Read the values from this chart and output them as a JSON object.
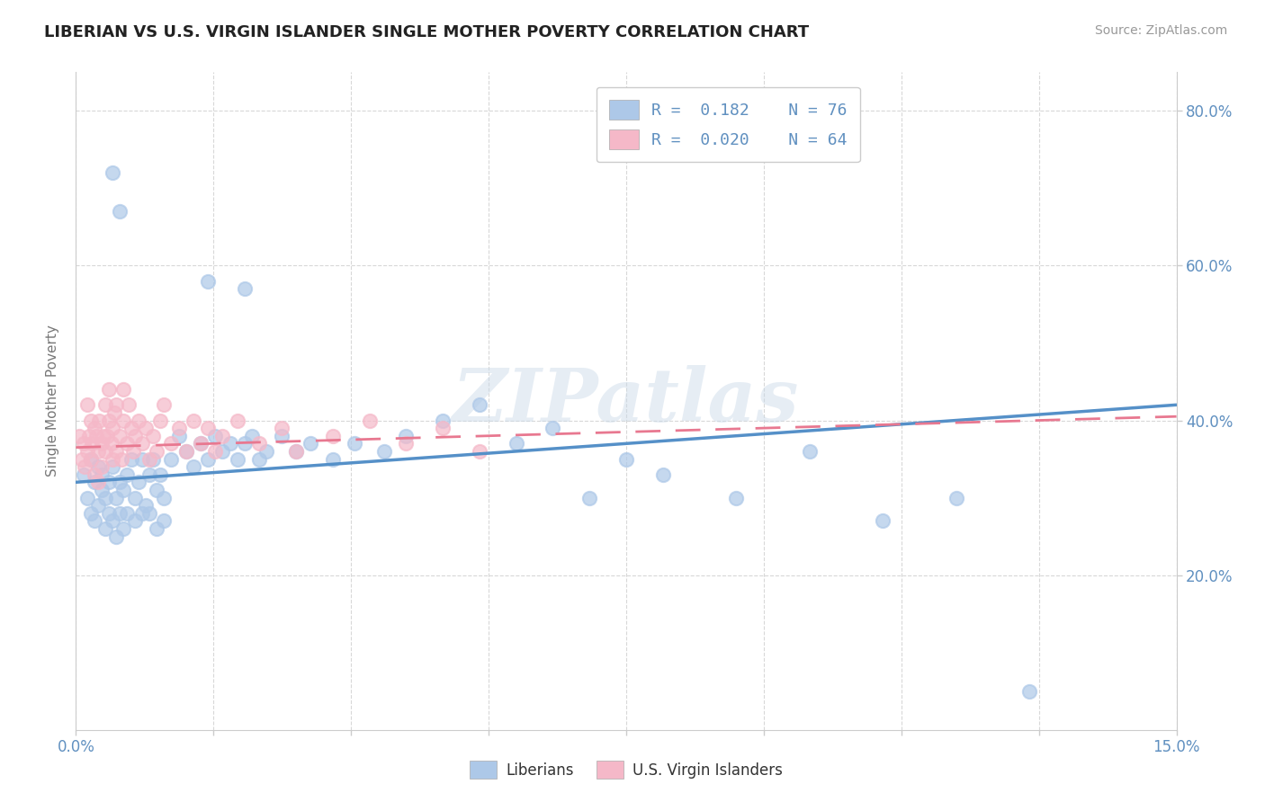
{
  "title": "LIBERIAN VS U.S. VIRGIN ISLANDER SINGLE MOTHER POVERTY CORRELATION CHART",
  "source": "Source: ZipAtlas.com",
  "ylabel": "Single Mother Poverty",
  "xlim": [
    0.0,
    15.0
  ],
  "ylim": [
    0.0,
    85.0
  ],
  "yticks": [
    20.0,
    40.0,
    60.0,
    80.0
  ],
  "xticks": [
    0.0,
    1.875,
    3.75,
    5.625,
    7.5,
    9.375,
    11.25,
    13.125,
    15.0
  ],
  "legend_R1": "R =  0.182",
  "legend_N1": "N = 76",
  "legend_R2": "R =  0.020",
  "legend_N2": "N = 64",
  "legend_label1": "Liberians",
  "legend_label2": "U.S. Virgin Islanders",
  "color_blue": "#adc8e8",
  "color_pink": "#f5b8c8",
  "color_blue_line": "#5590c8",
  "color_pink_line": "#e87890",
  "color_text": "#6090c0",
  "watermark": "ZIPatlas",
  "liberians_x": [
    0.1,
    0.15,
    0.2,
    0.2,
    0.25,
    0.25,
    0.3,
    0.3,
    0.35,
    0.35,
    0.4,
    0.4,
    0.45,
    0.45,
    0.5,
    0.5,
    0.55,
    0.55,
    0.6,
    0.6,
    0.65,
    0.65,
    0.7,
    0.7,
    0.75,
    0.8,
    0.8,
    0.85,
    0.9,
    0.9,
    0.95,
    1.0,
    1.0,
    1.05,
    1.1,
    1.1,
    1.15,
    1.2,
    1.2,
    1.3,
    1.4,
    1.5,
    1.6,
    1.7,
    1.8,
    1.9,
    2.0,
    2.1,
    2.2,
    2.3,
    2.4,
    2.5,
    2.6,
    2.8,
    3.0,
    3.2,
    3.5,
    3.8,
    4.2,
    4.5,
    5.0,
    5.5,
    6.0,
    6.5,
    7.0,
    7.5,
    8.0,
    9.0,
    10.0,
    11.0,
    12.0,
    13.0,
    2.3,
    1.8,
    0.5,
    0.6
  ],
  "liberians_y": [
    33,
    30,
    35,
    28,
    32,
    27,
    34,
    29,
    33,
    31,
    30,
    26,
    32,
    28,
    34,
    27,
    30,
    25,
    32,
    28,
    31,
    26,
    33,
    28,
    35,
    30,
    27,
    32,
    28,
    35,
    29,
    33,
    28,
    35,
    31,
    26,
    33,
    30,
    27,
    35,
    38,
    36,
    34,
    37,
    35,
    38,
    36,
    37,
    35,
    37,
    38,
    35,
    36,
    38,
    36,
    37,
    35,
    37,
    36,
    38,
    40,
    42,
    37,
    39,
    30,
    35,
    33,
    30,
    36,
    27,
    30,
    5,
    57,
    58,
    72,
    67
  ],
  "virgin_islanders_x": [
    0.05,
    0.08,
    0.1,
    0.12,
    0.15,
    0.15,
    0.18,
    0.2,
    0.2,
    0.22,
    0.25,
    0.25,
    0.28,
    0.3,
    0.3,
    0.32,
    0.35,
    0.35,
    0.38,
    0.4,
    0.4,
    0.42,
    0.45,
    0.45,
    0.48,
    0.5,
    0.5,
    0.52,
    0.55,
    0.55,
    0.6,
    0.62,
    0.65,
    0.65,
    0.7,
    0.72,
    0.75,
    0.78,
    0.8,
    0.85,
    0.9,
    0.95,
    1.0,
    1.05,
    1.1,
    1.15,
    1.2,
    1.3,
    1.4,
    1.5,
    1.6,
    1.7,
    1.8,
    1.9,
    2.0,
    2.2,
    2.5,
    2.8,
    3.0,
    3.5,
    4.0,
    4.5,
    5.0,
    5.5
  ],
  "virgin_islanders_y": [
    38,
    35,
    37,
    34,
    36,
    42,
    38,
    40,
    35,
    37,
    39,
    33,
    38,
    36,
    32,
    40,
    37,
    34,
    38,
    36,
    42,
    38,
    40,
    44,
    37,
    39,
    35,
    41,
    36,
    42,
    38,
    35,
    40,
    44,
    37,
    42,
    39,
    36,
    38,
    40,
    37,
    39,
    35,
    38,
    36,
    40,
    42,
    37,
    39,
    36,
    40,
    37,
    39,
    36,
    38,
    40,
    37,
    39,
    36,
    38,
    40,
    37,
    39,
    36
  ],
  "trend_lib_y0": 32.0,
  "trend_lib_y1": 42.0,
  "trend_vi_y0": 36.5,
  "trend_vi_y1": 40.5
}
